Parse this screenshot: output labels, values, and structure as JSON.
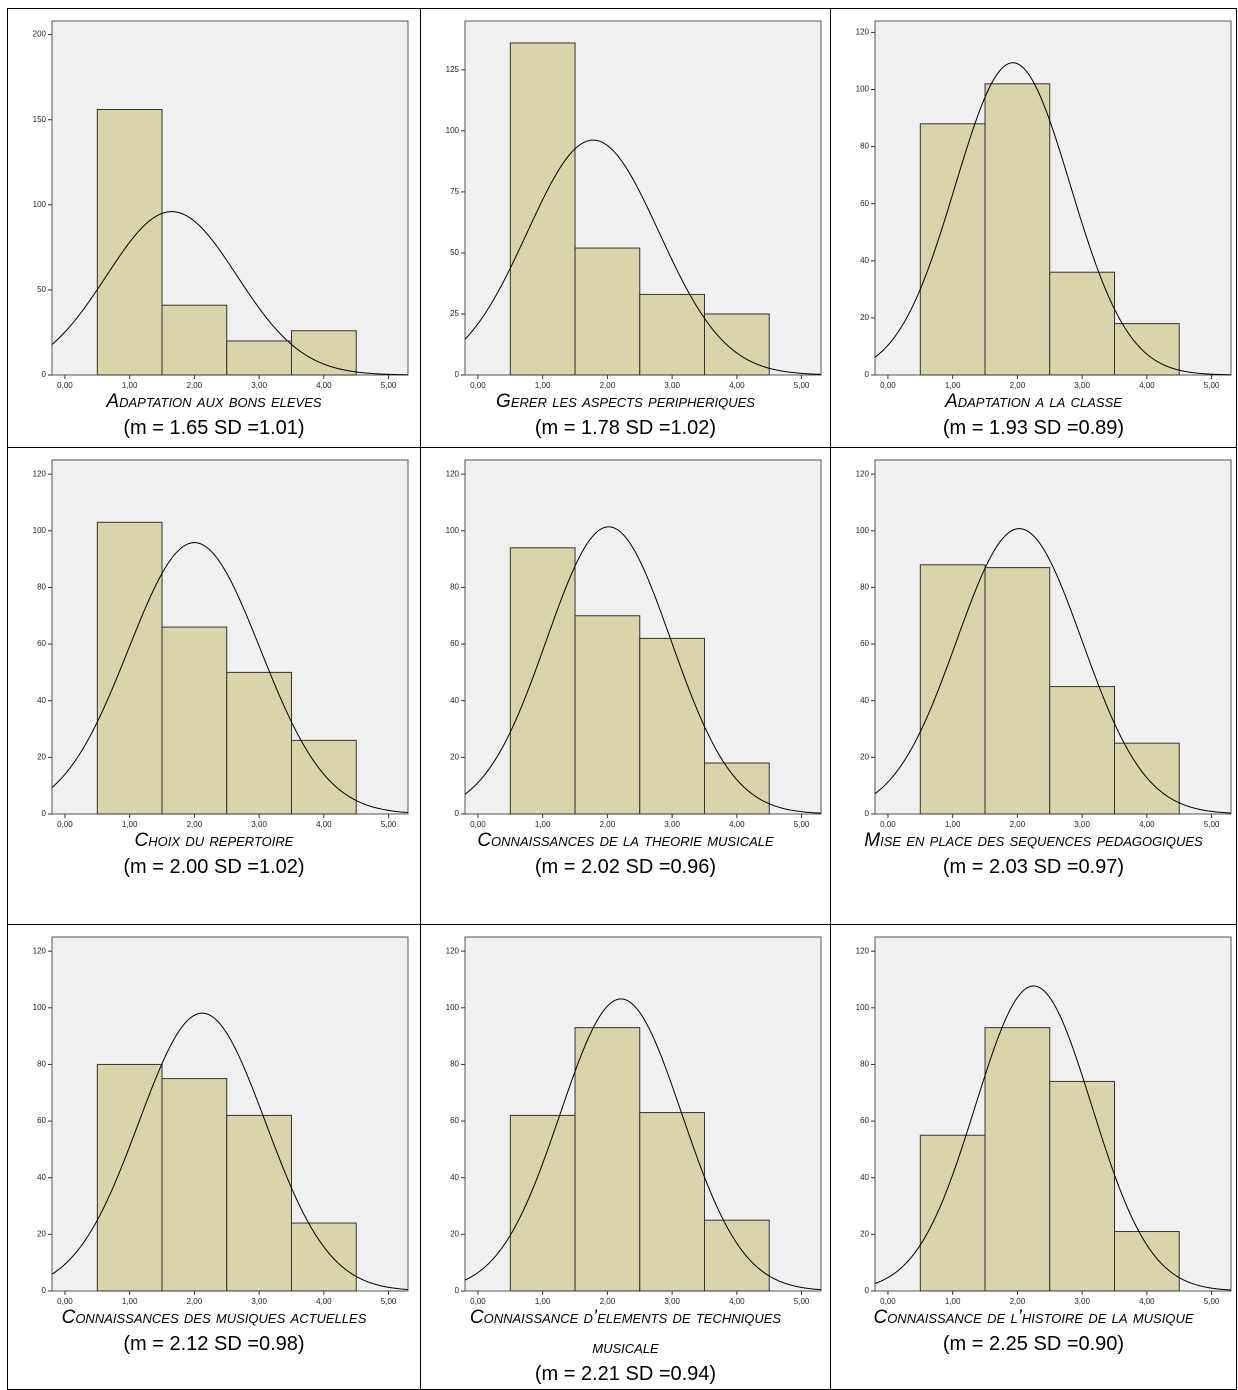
{
  "chart_data": [
    {
      "type": "histogram",
      "title": "Adaptation aux bons eleves",
      "subtitle": "(m = 1.65 SD =1.01)",
      "bins": [
        0.5,
        1.5,
        2.5,
        3.5,
        4.5
      ],
      "values": [
        156,
        41,
        20,
        26
      ],
      "normal_curve": {
        "mean": 1.65,
        "sd": 1.01
      },
      "color": "#d9d4a9",
      "xlim": [
        -0.2,
        5.3
      ],
      "xticks": [
        {
          "value": 0,
          "label": "0,00"
        },
        {
          "value": 1,
          "label": "1,00"
        },
        {
          "value": 2,
          "label": "2,00"
        },
        {
          "value": 3,
          "label": "3,00"
        },
        {
          "value": 4,
          "label": "4,00"
        },
        {
          "value": 5,
          "label": "5,00"
        }
      ],
      "ylim": [
        0,
        208
      ],
      "yticks": [
        0,
        50,
        100,
        150,
        200
      ]
    },
    {
      "type": "histogram",
      "title": "Gerer les aspects peripheriques",
      "subtitle": "(m = 1.78 SD =1.02)",
      "bins": [
        0.5,
        1.5,
        2.5,
        3.5,
        4.5
      ],
      "values": [
        136,
        52,
        33,
        25
      ],
      "normal_curve": {
        "mean": 1.78,
        "sd": 1.02
      },
      "color": "#d9d4a9",
      "xlim": [
        -0.2,
        5.3
      ],
      "xticks": [
        {
          "value": 0,
          "label": "0,00"
        },
        {
          "value": 1,
          "label": "1,00"
        },
        {
          "value": 2,
          "label": "2,00"
        },
        {
          "value": 3,
          "label": "3,00"
        },
        {
          "value": 4,
          "label": "4,00"
        },
        {
          "value": 5,
          "label": "5,00"
        }
      ],
      "ylim": [
        0,
        145
      ],
      "yticks": [
        0,
        25,
        50,
        75,
        100,
        125
      ]
    },
    {
      "type": "histogram",
      "title": "Adaptation a la classe",
      "subtitle": "(m = 1.93 SD =0.89)",
      "bins": [
        0.5,
        1.5,
        2.5,
        3.5,
        4.5
      ],
      "values": [
        88,
        102,
        36,
        18
      ],
      "normal_curve": {
        "mean": 1.93,
        "sd": 0.89
      },
      "color": "#d9d4a9",
      "xlim": [
        -0.2,
        5.3
      ],
      "xticks": [
        {
          "value": 0,
          "label": "0,00"
        },
        {
          "value": 1,
          "label": "1,00"
        },
        {
          "value": 2,
          "label": "2,00"
        },
        {
          "value": 3,
          "label": "3,00"
        },
        {
          "value": 4,
          "label": "4,00"
        },
        {
          "value": 5,
          "label": "5,00"
        }
      ],
      "ylim": [
        0,
        124
      ],
      "yticks": [
        0,
        20,
        40,
        60,
        80,
        100,
        120
      ]
    },
    {
      "type": "histogram",
      "title": "Choix du repertoire",
      "subtitle": "(m = 2.00 SD =1.02)",
      "bins": [
        0.5,
        1.5,
        2.5,
        3.5,
        4.5
      ],
      "values": [
        103,
        66,
        50,
        26
      ],
      "normal_curve": {
        "mean": 2.0,
        "sd": 1.02
      },
      "color": "#d9d4a9",
      "xlim": [
        -0.2,
        5.3
      ],
      "xticks": [
        {
          "value": 0,
          "label": "0,00"
        },
        {
          "value": 1,
          "label": "1,00"
        },
        {
          "value": 2,
          "label": "2,00"
        },
        {
          "value": 3,
          "label": "3,00"
        },
        {
          "value": 4,
          "label": "4,00"
        },
        {
          "value": 5,
          "label": "5,00"
        }
      ],
      "ylim": [
        0,
        125
      ],
      "yticks": [
        0,
        20,
        40,
        60,
        80,
        100,
        120
      ]
    },
    {
      "type": "histogram",
      "title": "Connaissances de la theorie musicale",
      "subtitle": "(m = 2.02 SD =0.96)",
      "bins": [
        0.5,
        1.5,
        2.5,
        3.5,
        4.5
      ],
      "values": [
        94,
        70,
        62,
        18
      ],
      "normal_curve": {
        "mean": 2.02,
        "sd": 0.96
      },
      "color": "#d9d4a9",
      "xlim": [
        -0.2,
        5.3
      ],
      "xticks": [
        {
          "value": 0,
          "label": "0,00"
        },
        {
          "value": 1,
          "label": "1,00"
        },
        {
          "value": 2,
          "label": "2,00"
        },
        {
          "value": 3,
          "label": "3,00"
        },
        {
          "value": 4,
          "label": "4,00"
        },
        {
          "value": 5,
          "label": "5,00"
        }
      ],
      "ylim": [
        0,
        125
      ],
      "yticks": [
        0,
        20,
        40,
        60,
        80,
        100,
        120
      ]
    },
    {
      "type": "histogram",
      "title": "Mise en place des sequences pedagogiques",
      "subtitle": "(m = 2.03 SD =0.97)",
      "bins": [
        0.5,
        1.5,
        2.5,
        3.5,
        4.5
      ],
      "values": [
        88,
        87,
        45,
        25
      ],
      "normal_curve": {
        "mean": 2.03,
        "sd": 0.97
      },
      "color": "#d9d4a9",
      "xlim": [
        -0.2,
        5.3
      ],
      "xticks": [
        {
          "value": 0,
          "label": "0,00"
        },
        {
          "value": 1,
          "label": "1,00"
        },
        {
          "value": 2,
          "label": "2,00"
        },
        {
          "value": 3,
          "label": "3,00"
        },
        {
          "value": 4,
          "label": "4,00"
        },
        {
          "value": 5,
          "label": "5,00"
        }
      ],
      "ylim": [
        0,
        125
      ],
      "yticks": [
        0,
        20,
        40,
        60,
        80,
        100,
        120
      ]
    },
    {
      "type": "histogram",
      "title": "Connaissances des musiques actuelles",
      "subtitle": "(m = 2.12 SD =0.98)",
      "bins": [
        0.5,
        1.5,
        2.5,
        3.5,
        4.5
      ],
      "values": [
        80,
        75,
        62,
        24
      ],
      "normal_curve": {
        "mean": 2.12,
        "sd": 0.98
      },
      "color": "#d9d4a9",
      "xlim": [
        -0.2,
        5.3
      ],
      "xticks": [
        {
          "value": 0,
          "label": "0,00"
        },
        {
          "value": 1,
          "label": "1,00"
        },
        {
          "value": 2,
          "label": "2,00"
        },
        {
          "value": 3,
          "label": "3,00"
        },
        {
          "value": 4,
          "label": "4,00"
        },
        {
          "value": 5,
          "label": "5,00"
        }
      ],
      "ylim": [
        0,
        125
      ],
      "yticks": [
        0,
        20,
        40,
        60,
        80,
        100,
        120
      ]
    },
    {
      "type": "histogram",
      "title": "Connaissance d’elements de techniques musicale",
      "subtitle": "(m = 2.21 SD =0.94)",
      "bins": [
        0.5,
        1.5,
        2.5,
        3.5,
        4.5
      ],
      "values": [
        62,
        93,
        63,
        25
      ],
      "normal_curve": {
        "mean": 2.21,
        "sd": 0.94
      },
      "color": "#d9d4a9",
      "xlim": [
        -0.2,
        5.3
      ],
      "xticks": [
        {
          "value": 0,
          "label": "0,00"
        },
        {
          "value": 1,
          "label": "1,00"
        },
        {
          "value": 2,
          "label": "2,00"
        },
        {
          "value": 3,
          "label": "3,00"
        },
        {
          "value": 4,
          "label": "4,00"
        },
        {
          "value": 5,
          "label": "5,00"
        }
      ],
      "ylim": [
        0,
        125
      ],
      "yticks": [
        0,
        20,
        40,
        60,
        80,
        100,
        120
      ]
    },
    {
      "type": "histogram",
      "title": "Connaissance de l’histoire de la musique",
      "subtitle": "(m = 2.25 SD =0.90)",
      "bins": [
        0.5,
        1.5,
        2.5,
        3.5,
        4.5
      ],
      "values": [
        55,
        93,
        74,
        21
      ],
      "normal_curve": {
        "mean": 2.25,
        "sd": 0.9
      },
      "color": "#d9d4a9",
      "xlim": [
        -0.2,
        5.3
      ],
      "xticks": [
        {
          "value": 0,
          "label": "0,00"
        },
        {
          "value": 1,
          "label": "1,00"
        },
        {
          "value": 2,
          "label": "2,00"
        },
        {
          "value": 3,
          "label": "3,00"
        },
        {
          "value": 4,
          "label": "4,00"
        },
        {
          "value": 5,
          "label": "5,00"
        }
      ],
      "ylim": [
        0,
        125
      ],
      "yticks": [
        0,
        20,
        40,
        60,
        80,
        100,
        120
      ]
    }
  ]
}
